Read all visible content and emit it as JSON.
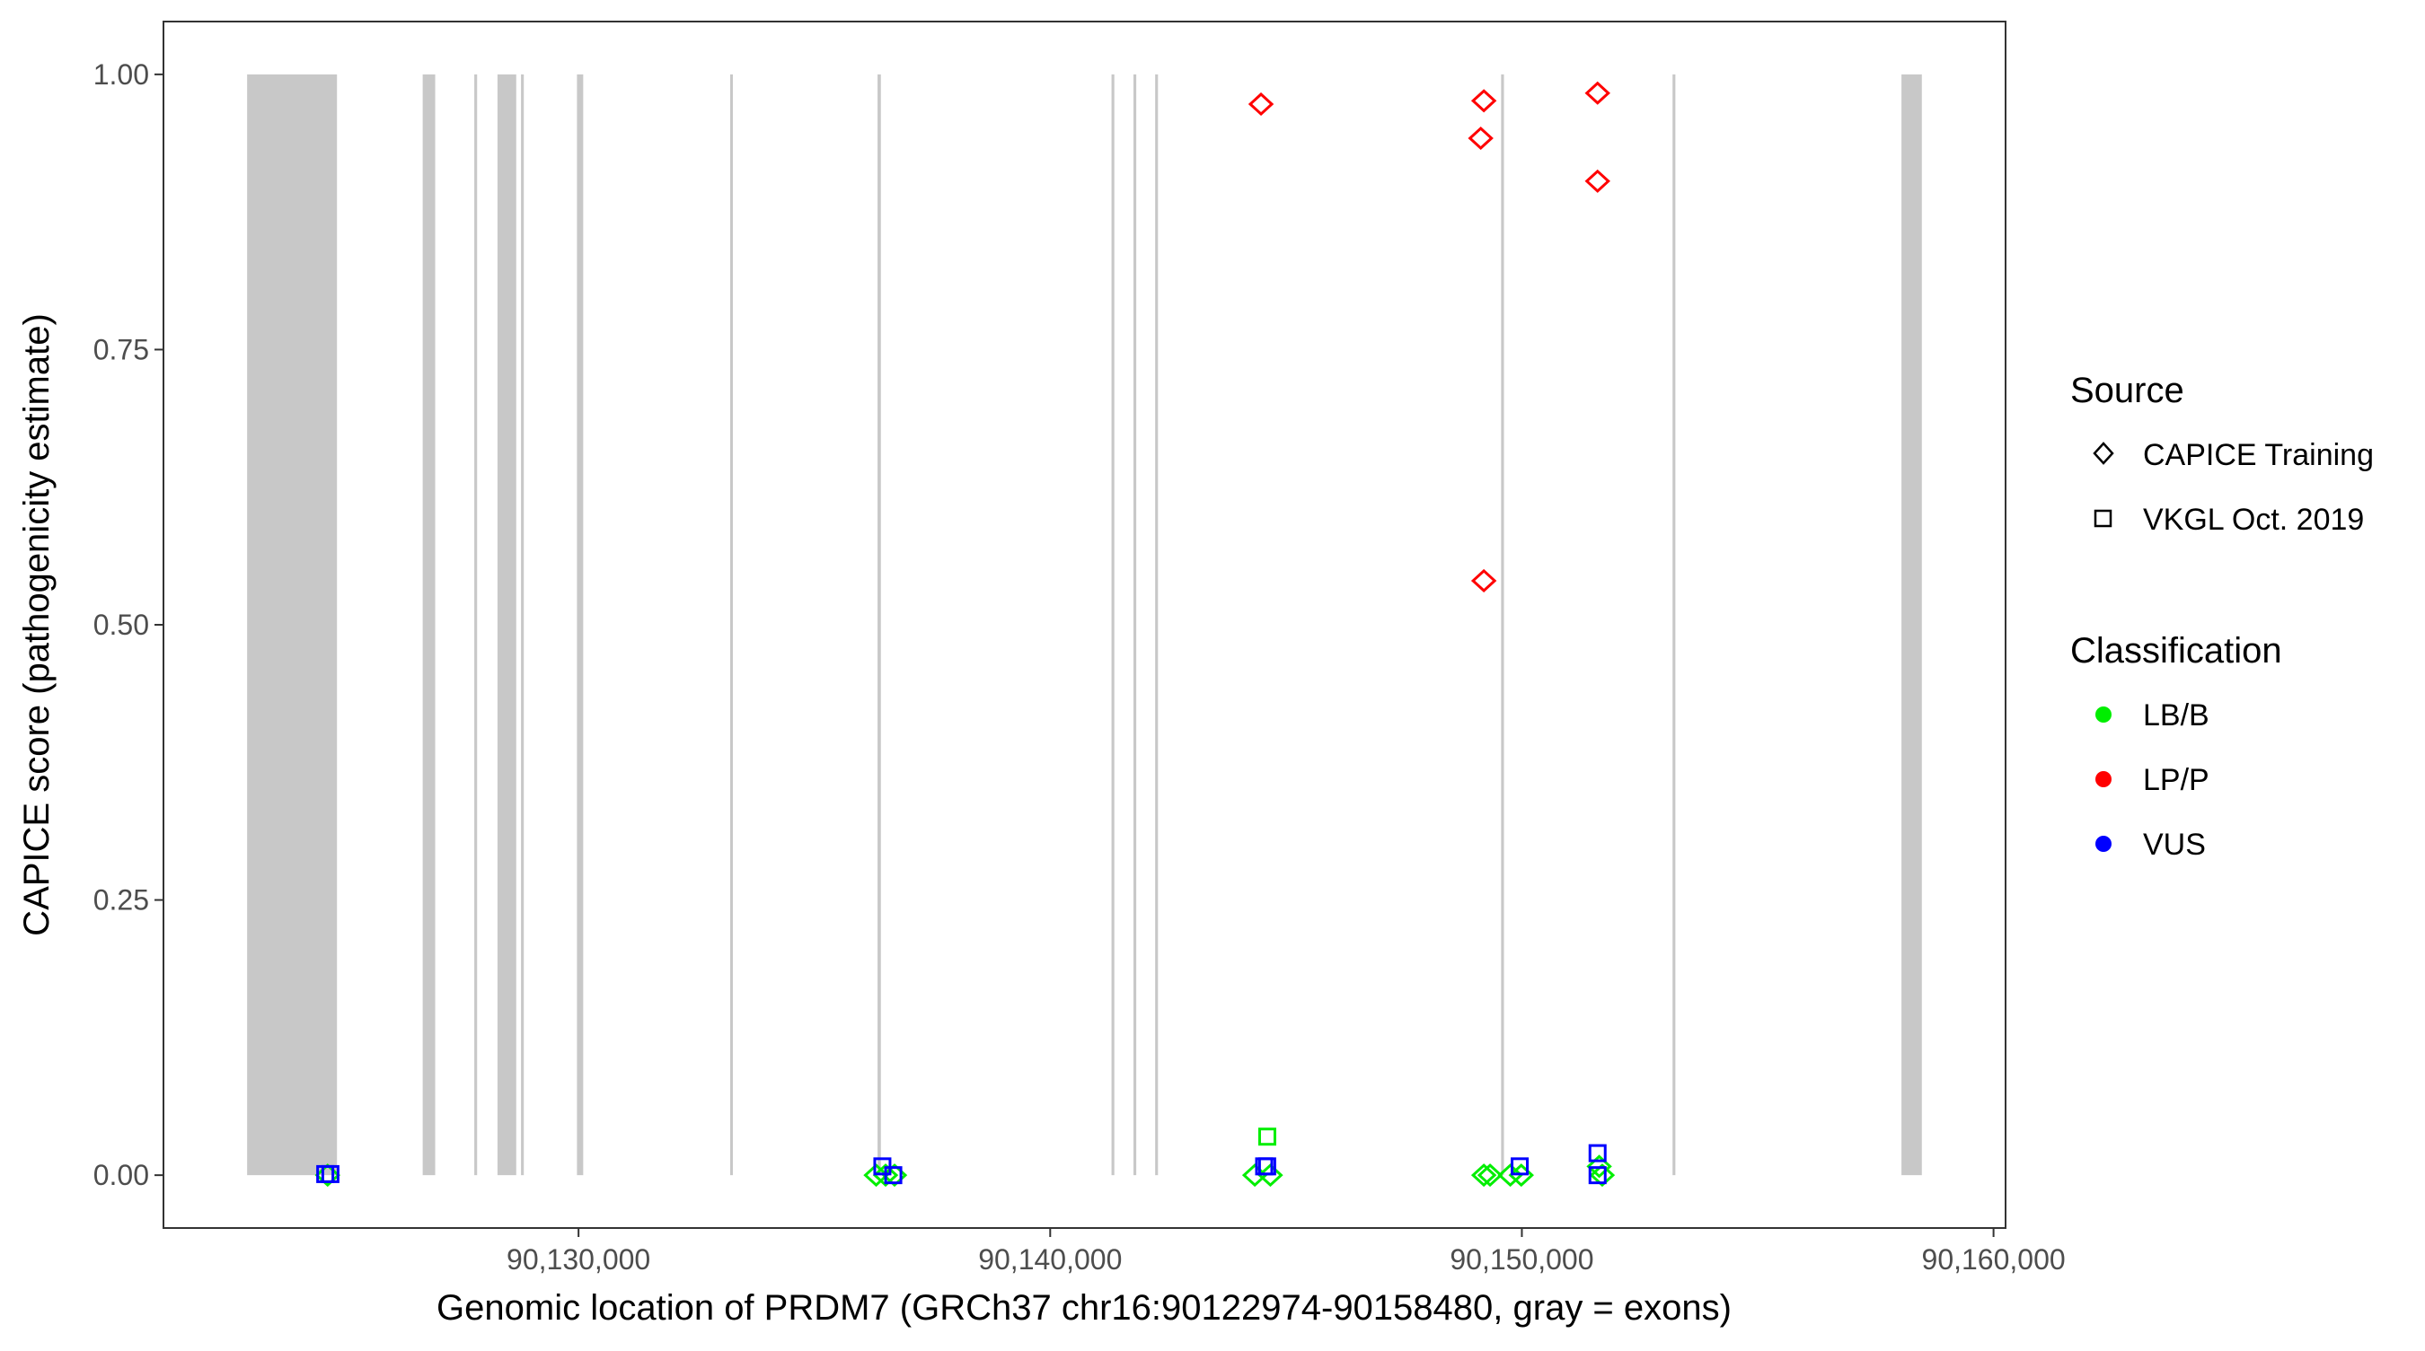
{
  "chart_data": {
    "type": "scatter",
    "xlabel": "Genomic location of PRDM7 (GRCh37 chr16:90122974-90158480, gray = exons)",
    "ylabel": "CAPICE score (pathogenicity estimate)",
    "xlim": [
      90121200,
      90160255
    ],
    "ylim": [
      -0.048,
      1.048
    ],
    "x_ticks": [
      90130000,
      90140000,
      90150000,
      90160000
    ],
    "x_tick_labels": [
      "90,130,000",
      "90,140,000",
      "90,150,000",
      "90,160,000"
    ],
    "y_ticks": [
      0,
      0.25,
      0.5,
      0.75,
      1.0
    ],
    "y_tick_labels": [
      "0.00",
      "0.25",
      "0.50",
      "0.75",
      "1.00"
    ],
    "grid": false,
    "exon_color": "#c8c8c8",
    "exons": [
      [
        90122974,
        90124879
      ],
      [
        90126696,
        90126961
      ],
      [
        90127790,
        90127850
      ],
      [
        90128282,
        90128679
      ],
      [
        90128780,
        90128840
      ],
      [
        90129967,
        90130099
      ],
      [
        90133215,
        90133260
      ],
      [
        90136340,
        90136410
      ],
      [
        90141300,
        90141360
      ],
      [
        90141765,
        90141825
      ],
      [
        90142225,
        90142285
      ],
      [
        90149560,
        90149620
      ],
      [
        90153195,
        90153255
      ],
      [
        90158048,
        90158480
      ]
    ],
    "legend": {
      "placement": "right",
      "source": {
        "title": "Source",
        "entries": [
          {
            "label": "CAPICE Training",
            "shape": "diamond"
          },
          {
            "label": "VKGL Oct. 2019",
            "shape": "square"
          }
        ]
      },
      "classification": {
        "title": "Classification",
        "entries": [
          {
            "label": "LB/B",
            "color": "#00ee00"
          },
          {
            "label": "LP/P",
            "color": "#ff0000"
          },
          {
            "label": "VUS",
            "color": "#0000ff"
          }
        ]
      }
    },
    "points": [
      {
        "x": 90124680,
        "y": 0.0,
        "source": "CAPICE Training",
        "class": "LB/B"
      },
      {
        "x": 90136310,
        "y": 0.0,
        "source": "CAPICE Training",
        "class": "LB/B"
      },
      {
        "x": 90136510,
        "y": 0.0,
        "source": "CAPICE Training",
        "class": "LB/B"
      },
      {
        "x": 90136700,
        "y": 0.0,
        "source": "CAPICE Training",
        "class": "LB/B"
      },
      {
        "x": 90144338,
        "y": 0.0,
        "source": "CAPICE Training",
        "class": "LB/B"
      },
      {
        "x": 90144668,
        "y": 0.0,
        "source": "CAPICE Training",
        "class": "LB/B"
      },
      {
        "x": 90149194,
        "y": 0.0,
        "source": "CAPICE Training",
        "class": "LB/B"
      },
      {
        "x": 90149326,
        "y": 0.0,
        "source": "CAPICE Training",
        "class": "LB/B"
      },
      {
        "x": 90149755,
        "y": 0.0,
        "source": "CAPICE Training",
        "class": "LB/B"
      },
      {
        "x": 90149987,
        "y": 0.0,
        "source": "CAPICE Training",
        "class": "LB/B"
      },
      {
        "x": 90151704,
        "y": 0.0,
        "source": "CAPICE Training",
        "class": "LB/B"
      },
      {
        "x": 90151640,
        "y": 0.008,
        "source": "CAPICE Training",
        "class": "LB/B"
      },
      {
        "x": 90144470,
        "y": 0.973,
        "source": "CAPICE Training",
        "class": "LP/P"
      },
      {
        "x": 90149194,
        "y": 0.976,
        "source": "CAPICE Training",
        "class": "LP/P"
      },
      {
        "x": 90149128,
        "y": 0.942,
        "source": "CAPICE Training",
        "class": "LP/P"
      },
      {
        "x": 90151605,
        "y": 0.983,
        "source": "CAPICE Training",
        "class": "LP/P"
      },
      {
        "x": 90151605,
        "y": 0.903,
        "source": "CAPICE Training",
        "class": "LP/P"
      },
      {
        "x": 90149194,
        "y": 0.54,
        "source": "CAPICE Training",
        "class": "LP/P"
      },
      {
        "x": 90144602,
        "y": 0.035,
        "source": "VKGL Oct. 2019",
        "class": "LB/B"
      },
      {
        "x": 90124630,
        "y": 0.001,
        "source": "VKGL Oct. 2019",
        "class": "VUS"
      },
      {
        "x": 90124740,
        "y": 0.001,
        "source": "VKGL Oct. 2019",
        "class": "VUS"
      },
      {
        "x": 90136442,
        "y": 0.008,
        "source": "VKGL Oct. 2019",
        "class": "VUS"
      },
      {
        "x": 90136673,
        "y": 0.0,
        "source": "VKGL Oct. 2019",
        "class": "VUS"
      },
      {
        "x": 90144536,
        "y": 0.008,
        "source": "VKGL Oct. 2019",
        "class": "VUS"
      },
      {
        "x": 90144600,
        "y": 0.008,
        "source": "VKGL Oct. 2019",
        "class": "VUS"
      },
      {
        "x": 90149954,
        "y": 0.008,
        "source": "VKGL Oct. 2019",
        "class": "VUS"
      },
      {
        "x": 90151605,
        "y": 0.02,
        "source": "VKGL Oct. 2019",
        "class": "VUS"
      },
      {
        "x": 90151605,
        "y": 0.0,
        "source": "VKGL Oct. 2019",
        "class": "VUS"
      }
    ]
  }
}
